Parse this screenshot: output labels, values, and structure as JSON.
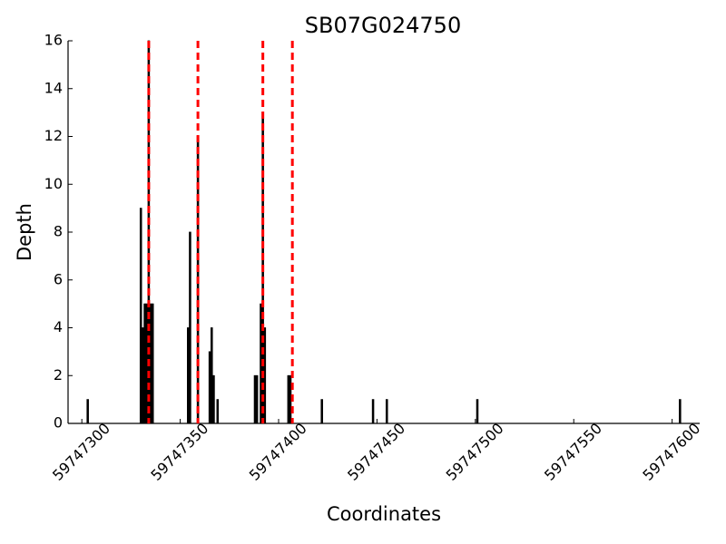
{
  "chart_data": {
    "type": "bar",
    "title": "SB07G024750",
    "x_label": "Coordinates",
    "y_label": "Depth",
    "x": [
      59747303,
      59747330,
      59747331,
      59747332,
      59747333,
      59747334,
      59747335,
      59747336,
      59747354,
      59747355,
      59747359,
      59747365,
      59747366,
      59747367,
      59747369,
      59747388,
      59747389,
      59747391,
      59747392,
      59747393,
      59747405,
      59747406,
      59747422,
      59747448,
      59747455,
      59747501,
      59747604
    ],
    "values": [
      1,
      9,
      4,
      5,
      5,
      16,
      5,
      5,
      4,
      8,
      12,
      3,
      4,
      2,
      1,
      2,
      2,
      5,
      13,
      4,
      2,
      2,
      1,
      1,
      1,
      1,
      1
    ],
    "color": "#000000",
    "vlines": [
      59747334,
      59747359,
      59747392,
      59747407
    ],
    "vline_color": "#ff0000",
    "xlim": [
      59747293,
      59747614
    ],
    "xticks": [
      59747300,
      59747350,
      59747400,
      59747450,
      59747500,
      59747550,
      59747600
    ],
    "ylim": [
      0,
      16
    ],
    "yticks": [
      0,
      2,
      4,
      6,
      8,
      10,
      12,
      14,
      16
    ]
  }
}
